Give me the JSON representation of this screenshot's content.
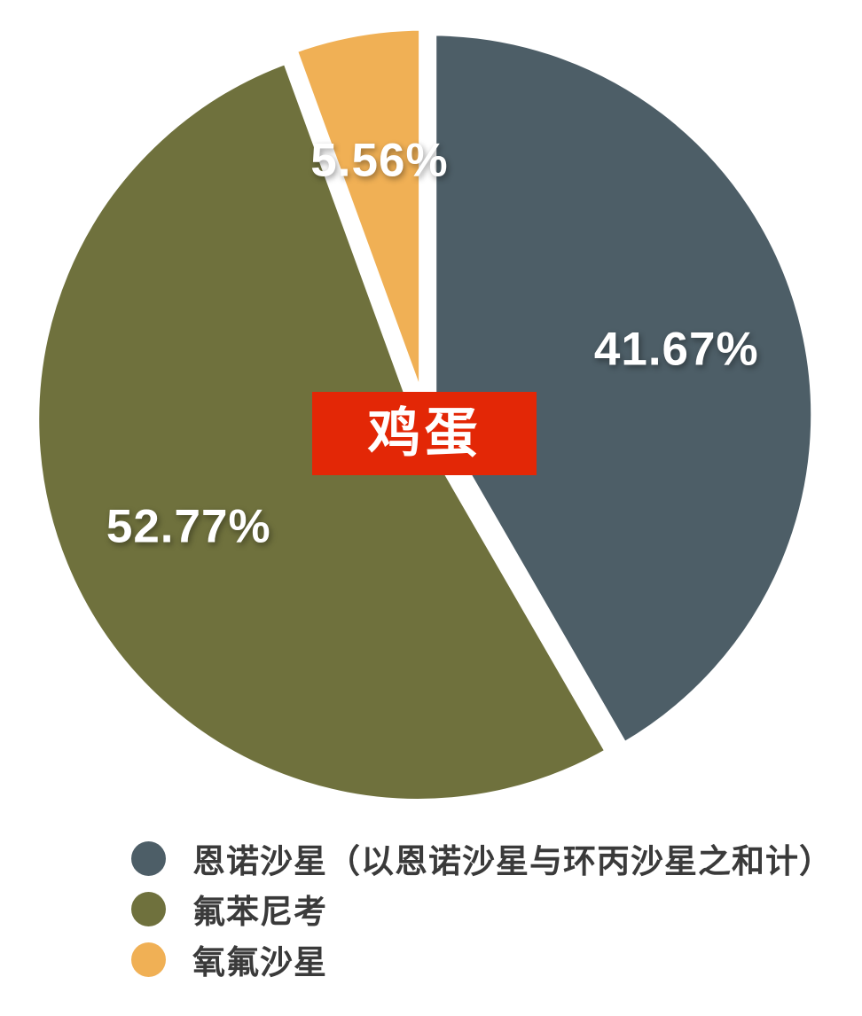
{
  "chart_data": {
    "type": "pie",
    "title": "",
    "center_label": "鸡蛋",
    "direction": "clockwise",
    "start_angle_deg": 0,
    "legend_position": "bottom-left",
    "background_color": "#ffffff",
    "percent_label_color": "#ffffff",
    "center_label_bg": "#e32706",
    "center_label_text_color": "#ffffff",
    "legend_text_color": "#3a3a3a",
    "slice_gap_color": "#ffffff",
    "slices": [
      {
        "label": "恩诺沙星（以恩诺沙星与环丙沙星之和计）",
        "value": 41.67,
        "display": "41.67%",
        "color": "#4d5e67"
      },
      {
        "label": "氟苯尼考",
        "value": 52.77,
        "display": "52.77%",
        "color": "#6f713d"
      },
      {
        "label": "氧氟沙星",
        "value": 5.56,
        "display": "5.56%",
        "color": "#f0b055"
      }
    ]
  }
}
